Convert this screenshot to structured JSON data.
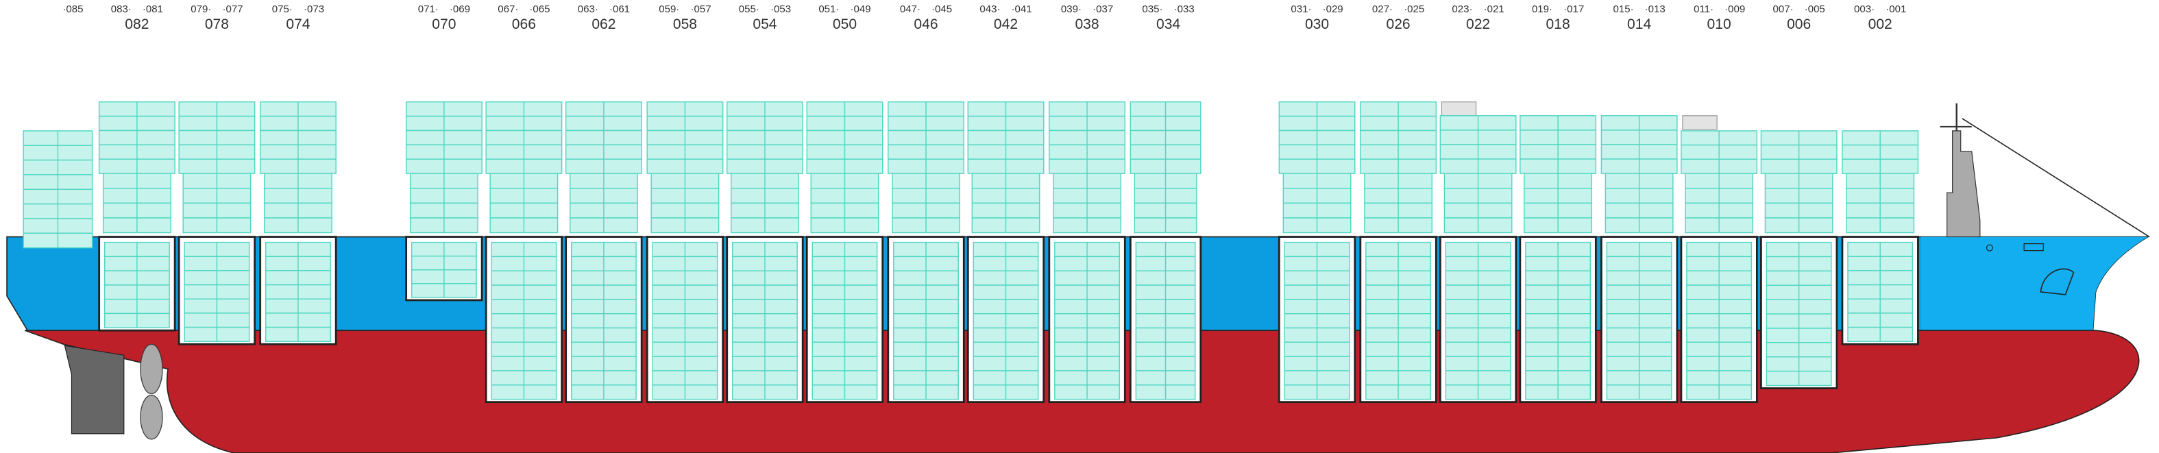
{
  "bays": [
    {
      "right": "·085"
    },
    {
      "left": "083·",
      "right": "·081",
      "label": "082"
    },
    {
      "left": "079·",
      "right": "·077",
      "label": "078"
    },
    {
      "left": "075·",
      "right": "·073",
      "label": "074"
    },
    {
      "left": "071·",
      "right": "·069",
      "label": "070"
    },
    {
      "left": "067·",
      "right": "·065",
      "label": "066"
    },
    {
      "left": "063·",
      "right": "·061",
      "label": "062"
    },
    {
      "left": "059·",
      "right": "·057",
      "label": "058"
    },
    {
      "left": "055·",
      "right": "·053",
      "label": "054"
    },
    {
      "left": "051·",
      "right": "·049",
      "label": "050"
    },
    {
      "left": "047·",
      "right": "·045",
      "label": "046"
    },
    {
      "left": "043·",
      "right": "·041",
      "label": "042"
    },
    {
      "left": "039·",
      "right": "·037",
      "label": "038"
    },
    {
      "left": "035·",
      "right": "·033",
      "label": "034"
    },
    {
      "left": "031·",
      "right": "·029",
      "label": "030"
    },
    {
      "left": "027·",
      "right": "·025",
      "label": "026"
    },
    {
      "left": "023·",
      "right": "·021",
      "label": "022"
    },
    {
      "left": "019·",
      "right": "·017",
      "label": "018"
    },
    {
      "left": "015·",
      "right": "·013",
      "label": "014"
    },
    {
      "left": "011·",
      "right": "·009",
      "label": "010"
    },
    {
      "left": "007·",
      "right": "·005",
      "label": "006"
    },
    {
      "left": "003·",
      "right": "·001",
      "label": "002"
    }
  ]
}
